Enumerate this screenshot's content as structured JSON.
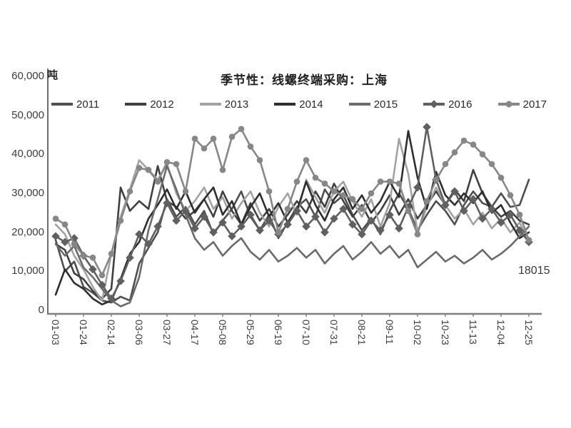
{
  "chart_data": {
    "type": "line",
    "title": "季节性：线螺终端采购：上海",
    "ylabel": "吨",
    "xlabel": "",
    "ylim": [
      0,
      60000
    ],
    "grid": false,
    "legend_position": "top",
    "y_tick_labels": [
      "0",
      "10,000",
      "20,000",
      "30,000",
      "40,000",
      "50,000",
      "60,000"
    ],
    "y_tick_values": [
      0,
      10000,
      20000,
      30000,
      40000,
      50000,
      60000
    ],
    "x_tick_labels": [
      "01-03",
      "01-24",
      "02-14",
      "03-06",
      "03-27",
      "04-17",
      "05-08",
      "05-29",
      "06-19",
      "07-10",
      "07-31",
      "08-21",
      "09-11",
      "10-02",
      "10-23",
      "11-13",
      "12-04",
      "12-25"
    ],
    "x_tick_every_n_points": 3,
    "points_per_series": 52,
    "axis_color": "#7a7a7a",
    "text_color": "#3d3d3d",
    "series": [
      {
        "name": "2011",
        "color": "#4f4f4f",
        "marker": "none",
        "values": [
          18000,
          10000,
          12500,
          6000,
          4500,
          2500,
          2000,
          3500,
          2500,
          12000,
          16000,
          20000,
          28500,
          24000,
          26500,
          22000,
          25500,
          19500,
          23000,
          26000,
          30500,
          24000,
          20500,
          24500,
          18500,
          22500,
          26500,
          28500,
          24000,
          31000,
          27500,
          29500,
          24500,
          20500,
          23500,
          19500,
          25500,
          30000,
          26000,
          20500,
          24500,
          28000,
          25500,
          22000,
          27000,
          30500,
          27500,
          26500,
          30000,
          26500,
          27000,
          33500
        ]
      },
      {
        "name": "2012",
        "color": "#404040",
        "marker": "none",
        "values": [
          17000,
          15500,
          9500,
          8000,
          5000,
          3000,
          5500,
          31500,
          25500,
          28000,
          26000,
          37000,
          28000,
          26500,
          23500,
          25500,
          28500,
          24000,
          30500,
          25500,
          22000,
          27500,
          23000,
          26000,
          21500,
          24500,
          28000,
          25000,
          30500,
          26500,
          32500,
          28000,
          24000,
          27000,
          22500,
          25500,
          29500,
          24500,
          28500,
          23500,
          27000,
          30500,
          27000,
          31000,
          28000,
          36000,
          30000,
          26500,
          24000,
          25500,
          23000,
          22000
        ]
      },
      {
        "name": "2013",
        "color": "#a3a3a3",
        "marker": "none",
        "values": [
          22000,
          19500,
          14000,
          10500,
          6000,
          2500,
          14500,
          24000,
          31000,
          38500,
          36000,
          33500,
          37500,
          30000,
          25500,
          28000,
          31500,
          26000,
          29000,
          23500,
          27500,
          30500,
          25000,
          21500,
          26500,
          30000,
          24500,
          33500,
          29000,
          25000,
          30500,
          33000,
          28000,
          24000,
          28500,
          21500,
          27500,
          44000,
          35000,
          20000,
          26500,
          31500,
          27000,
          23500,
          26000,
          22000,
          25000,
          21000,
          23500,
          20000,
          22500,
          17500
        ]
      },
      {
        "name": "2014",
        "color": "#2e2e2e",
        "marker": "none",
        "values": [
          4000,
          10500,
          7000,
          5500,
          3000,
          1500,
          2500,
          8000,
          14500,
          17500,
          23500,
          27000,
          31000,
          26000,
          30500,
          25000,
          28500,
          31500,
          24500,
          28000,
          22000,
          26500,
          30000,
          24000,
          27500,
          22500,
          25500,
          33000,
          27000,
          23000,
          28500,
          31500,
          26000,
          29500,
          25000,
          28000,
          33000,
          29000,
          46000,
          34000,
          26000,
          35500,
          29500,
          27000,
          30000,
          27500,
          30500,
          25000,
          27000,
          22500,
          18500,
          20000
        ]
      },
      {
        "name": "2015",
        "color": "#6b6b6b",
        "marker": "none",
        "values": [
          17000,
          14000,
          16500,
          11000,
          8500,
          5500,
          2500,
          1000,
          2000,
          8500,
          20500,
          28500,
          37000,
          31000,
          24500,
          18500,
          15500,
          17500,
          14000,
          16500,
          18500,
          15000,
          13000,
          15500,
          12500,
          14000,
          16000,
          13500,
          15500,
          12000,
          14500,
          16500,
          13000,
          15000,
          17500,
          14500,
          16500,
          13500,
          15500,
          11000,
          13000,
          15000,
          12500,
          14000,
          12000,
          13500,
          15500,
          13000,
          14500,
          16500,
          19000,
          21500
        ]
      },
      {
        "name": "2016",
        "color": "#606060",
        "marker": "diamond",
        "values": [
          19000,
          17500,
          18500,
          14000,
          10500,
          6500,
          3000,
          7500,
          13500,
          19500,
          17000,
          21500,
          27500,
          23000,
          25500,
          21000,
          24000,
          20000,
          22500,
          19000,
          21500,
          24500,
          20500,
          23000,
          19500,
          22000,
          25500,
          21500,
          24000,
          20000,
          23500,
          26000,
          22000,
          19500,
          23000,
          20500,
          24500,
          21000,
          26500,
          31500,
          47000,
          33500,
          27000,
          30500,
          25500,
          28500,
          23500,
          26000,
          22500,
          24500,
          20500,
          17500
        ]
      },
      {
        "name": "2017",
        "color": "#878787",
        "marker": "circle",
        "values": [
          23500,
          22000,
          17000,
          14000,
          13500,
          9000,
          14500,
          23000,
          30500,
          36500,
          36000,
          33000,
          38000,
          37500,
          30500,
          44000,
          41500,
          44000,
          36000,
          44500,
          46500,
          42000,
          38500,
          30500,
          20000,
          26000,
          33000,
          38500,
          34000,
          32500,
          30500,
          29500,
          28500,
          26000,
          30000,
          33000,
          33000,
          32500,
          25500,
          19500,
          28000,
          33500,
          37500,
          40500,
          43500,
          42500,
          40000,
          37500,
          34000,
          29500,
          24500,
          18015
        ]
      }
    ],
    "annotation": {
      "text": "18015",
      "series": "2017",
      "x_label": "12-25",
      "value": 18015
    }
  }
}
